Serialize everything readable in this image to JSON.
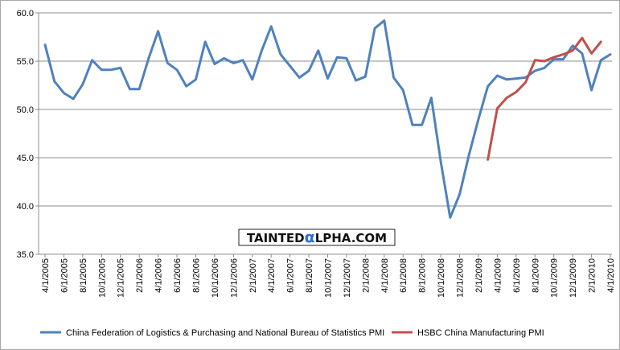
{
  "chart_data": {
    "type": "line",
    "title": "",
    "xlabel": "",
    "ylabel": "",
    "ylim": [
      35.0,
      60.0
    ],
    "yticks": [
      "35.0",
      "40.0",
      "45.0",
      "50.0",
      "55.0",
      "60.0"
    ],
    "grid": "horizontal",
    "legend_position": "bottom",
    "x": [
      "4/1/2005",
      "5/1/2005",
      "6/1/2005",
      "7/1/2005",
      "8/1/2005",
      "9/1/2005",
      "10/1/2005",
      "11/1/2005",
      "12/1/2005",
      "1/1/2006",
      "2/1/2006",
      "3/1/2006",
      "4/1/2006",
      "5/1/2006",
      "6/1/2006",
      "7/1/2006",
      "8/1/2006",
      "9/1/2006",
      "10/1/2006",
      "11/1/2006",
      "12/1/2006",
      "1/1/2007",
      "2/1/2007",
      "3/1/2007",
      "4/1/2007",
      "5/1/2007",
      "6/1/2007",
      "7/1/2007",
      "8/1/2007",
      "9/1/2007",
      "10/1/2007",
      "11/1/2007",
      "12/1/2007",
      "1/1/2008",
      "2/1/2008",
      "3/1/2008",
      "4/1/2008",
      "5/1/2008",
      "6/1/2008",
      "7/1/2008",
      "8/1/2008",
      "9/1/2008",
      "10/1/2008",
      "11/1/2008",
      "12/1/2008",
      "1/1/2009",
      "2/1/2009",
      "3/1/2009",
      "4/1/2009",
      "5/1/2009",
      "6/1/2009",
      "7/1/2009",
      "8/1/2009",
      "9/1/2009",
      "10/1/2009",
      "11/1/2009",
      "12/1/2009",
      "1/1/2010",
      "2/1/2010",
      "3/1/2010",
      "4/1/2010"
    ],
    "x_tick_labels": [
      "4/1/2005",
      "6/1/2005",
      "8/1/2005",
      "10/1/2005",
      "12/1/2005",
      "2/1/2006",
      "4/1/2006",
      "6/1/2006",
      "8/1/2006",
      "10/1/2006",
      "12/1/2006",
      "2/1/2007",
      "4/1/2007",
      "6/1/2007",
      "8/1/2007",
      "10/1/2007",
      "12/1/2007",
      "2/1/2008",
      "4/1/2008",
      "6/1/2008",
      "8/1/2008",
      "10/1/2008",
      "12/1/2008",
      "2/1/2009",
      "4/1/2009",
      "6/1/2009",
      "8/1/2009",
      "10/1/2009",
      "12/1/2009",
      "2/1/2010",
      "4/1/2010"
    ],
    "series": [
      {
        "name": "China Federation of Logistics & Purchasing and National Bureau of Statistics PMI",
        "color": "#4f81bd",
        "values": [
          56.7,
          52.9,
          51.7,
          51.1,
          52.6,
          55.1,
          54.1,
          54.1,
          54.3,
          52.1,
          52.1,
          55.3,
          58.1,
          54.8,
          54.1,
          52.4,
          53.1,
          57.0,
          54.7,
          55.3,
          54.8,
          55.1,
          53.1,
          56.1,
          58.6,
          55.7,
          54.5,
          53.3,
          54.0,
          56.1,
          53.2,
          55.4,
          55.3,
          53.0,
          53.4,
          58.4,
          59.2,
          53.3,
          52.0,
          48.4,
          48.4,
          51.2,
          44.6,
          38.8,
          41.2,
          45.3,
          49.0,
          52.4,
          53.5,
          53.1,
          53.2,
          53.3,
          54.0,
          54.3,
          55.2,
          55.2,
          56.6,
          55.8,
          52.0,
          55.1,
          55.7
        ]
      },
      {
        "name": "HSBC China Manufacturing PMI",
        "color": "#c0504d",
        "values": [
          null,
          null,
          null,
          null,
          null,
          null,
          null,
          null,
          null,
          null,
          null,
          null,
          null,
          null,
          null,
          null,
          null,
          null,
          null,
          null,
          null,
          null,
          null,
          null,
          null,
          null,
          null,
          null,
          null,
          null,
          null,
          null,
          null,
          null,
          null,
          null,
          null,
          null,
          null,
          null,
          null,
          null,
          null,
          null,
          null,
          null,
          null,
          44.8,
          50.1,
          51.2,
          51.8,
          52.8,
          55.1,
          55.0,
          55.4,
          55.7,
          56.1,
          57.4,
          55.8,
          57.0,
          null
        ]
      }
    ],
    "annotation": {
      "prefix": "TAINTED",
      "glyph": "α",
      "suffix": "LPHA.COM"
    }
  }
}
